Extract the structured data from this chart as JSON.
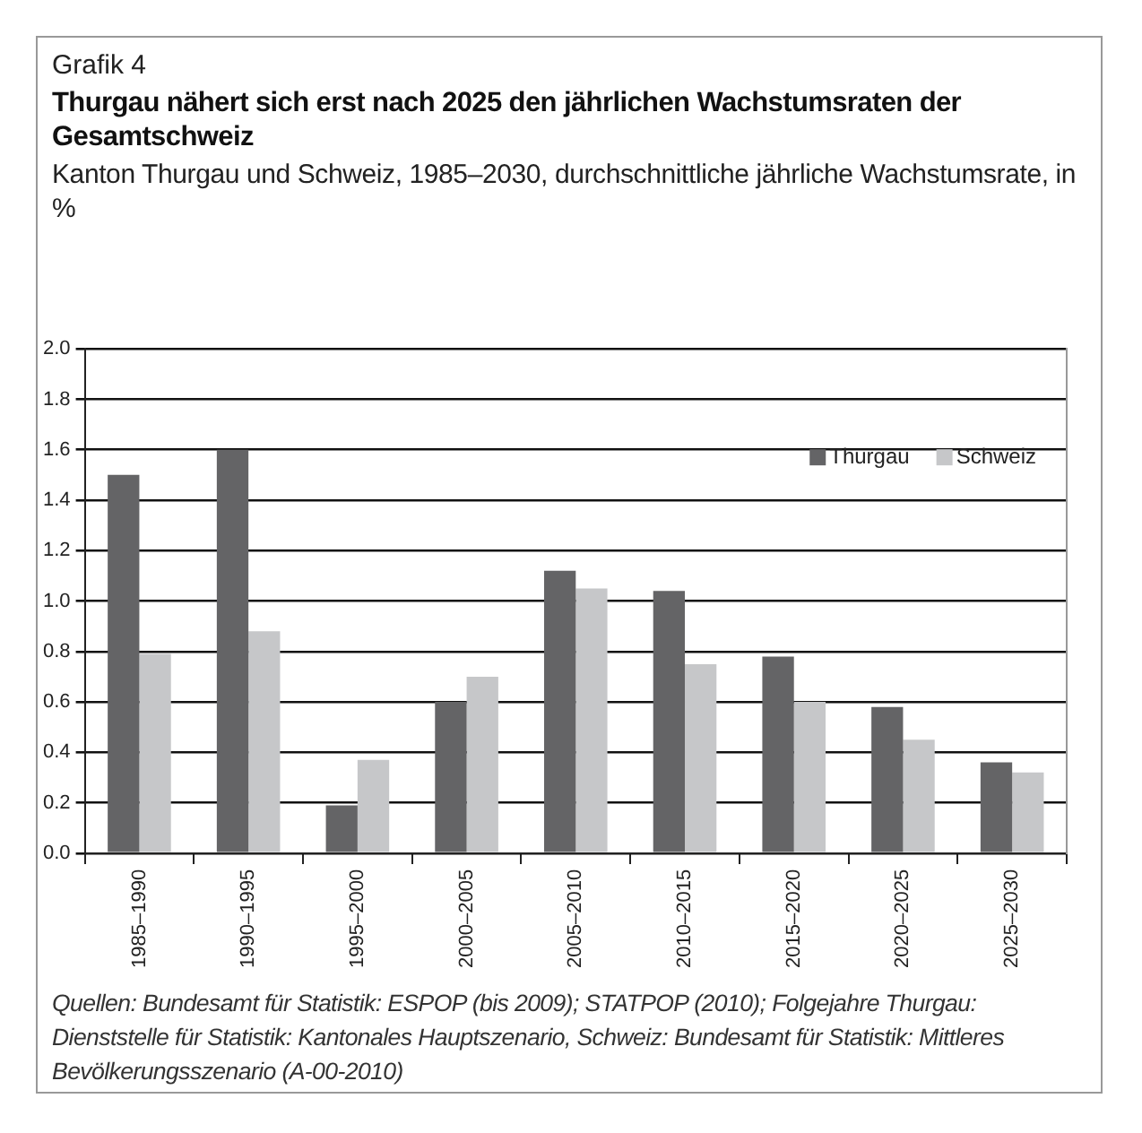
{
  "chart_data": {
    "type": "bar",
    "title": "Grafik 4",
    "subtitle": "Thurgau nähert sich erst nach 2025 den jährlichen Wachstumsraten der Gesamtschweiz",
    "ylabel": "Kanton Thurgau und Schweiz, 1985–2030, durchschnittliche jährliche Wachstumsrate, in %",
    "categories": [
      "1985–1990",
      "1990–1995",
      "1995–2000",
      "2000–2005",
      "2005–2010",
      "2010–2015",
      "2015–2020",
      "2020–2025",
      "2025–2030"
    ],
    "series": [
      {
        "name": "Thurgau",
        "color": "#646466",
        "values": [
          1.5,
          1.6,
          0.19,
          0.6,
          1.12,
          1.04,
          0.78,
          0.58,
          0.36
        ]
      },
      {
        "name": "Schweiz",
        "color": "#c6c7c9",
        "values": [
          0.79,
          0.88,
          0.37,
          0.7,
          1.05,
          0.75,
          0.6,
          0.45,
          0.32
        ]
      }
    ],
    "ylim": [
      0,
      2
    ],
    "yticks": [
      {
        "value": 0,
        "label": "0.0"
      },
      {
        "value": 0.2,
        "label": "0.2"
      },
      {
        "value": 0.4,
        "label": "0.4"
      },
      {
        "value": 0.6,
        "label": "0.6"
      },
      {
        "value": 0.8,
        "label": "0.8"
      },
      {
        "value": 1,
        "label": "1.0"
      },
      {
        "value": 1.2,
        "label": "1.2"
      },
      {
        "value": 1.4,
        "label": "1.4"
      },
      {
        "value": 1.6,
        "label": "1.6"
      },
      {
        "value": 1.8,
        "label": "1.8"
      },
      {
        "value": 2,
        "label": "2.0"
      }
    ],
    "grid": "y",
    "legend": "top right",
    "annotations": [
      "Quellen: Bundesamt für Statistik: ESPOP (bis 2009); STATPOP (2010); Folgejahre Thurgau: Dienststelle für Statistik: Kantonales Hauptszenario, Schweiz: Bundesamt für Statistik: Mittleres Bevölkerungsszenario (A-00-2010)"
    ]
  }
}
